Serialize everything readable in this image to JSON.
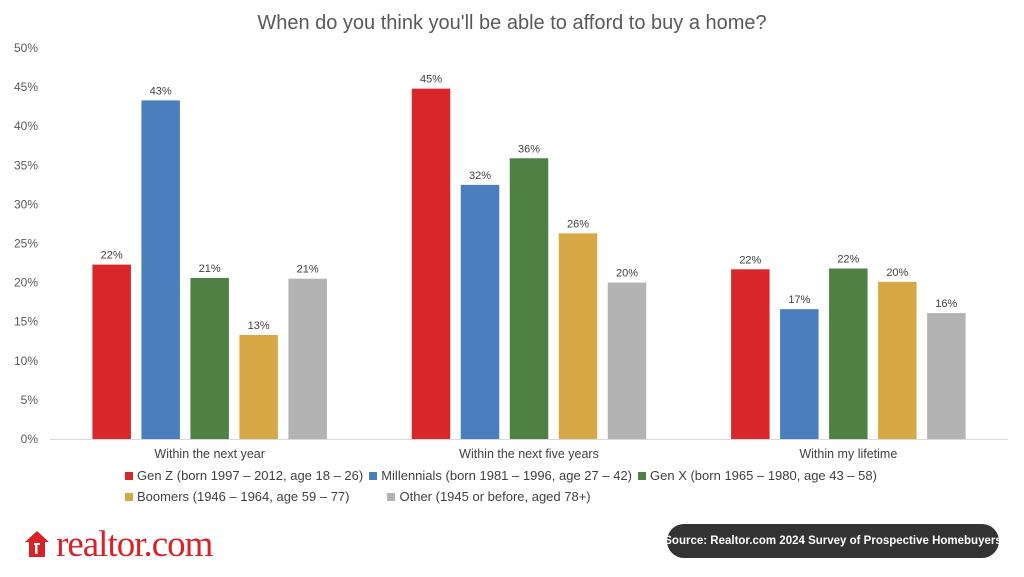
{
  "chart_data": {
    "type": "bar",
    "title": "When do you think you'll be able to afford to buy a home?",
    "categories": [
      "Within the next year",
      "Within the next five years",
      "Within my lifetime"
    ],
    "series": [
      {
        "name": "Gen Z (born 1997 – 2012, age 18 – 26)",
        "color": "#d9262b",
        "values": [
          22.3,
          44.8,
          21.7
        ],
        "labels": [
          "22%",
          "45%",
          "22%"
        ]
      },
      {
        "name": "Millennials (born 1981 – 1996, age 27 – 42)",
        "color": "#4a7ebf",
        "values": [
          43.3,
          32.5,
          16.6
        ],
        "labels": [
          "43%",
          "32%",
          "17%"
        ]
      },
      {
        "name": "Gen X (born 1965 – 1980, age 43 – 58)",
        "color": "#4f8144",
        "values": [
          20.6,
          35.9,
          21.8
        ],
        "labels": [
          "21%",
          "36%",
          "22%"
        ]
      },
      {
        "name": "Boomers (1946 – 1964, age 59 – 77)",
        "color": "#d6a846",
        "values": [
          13.3,
          26.3,
          20.1
        ],
        "labels": [
          "13%",
          "26%",
          "20%"
        ]
      },
      {
        "name": "Other (1945 or before, aged 78+)",
        "color": "#b3b3b3",
        "values": [
          20.5,
          20.0,
          16.1
        ],
        "labels": [
          "21%",
          "20%",
          "16%"
        ]
      }
    ],
    "y_ticks": [
      "0%",
      "5%",
      "10%",
      "15%",
      "20%",
      "25%",
      "30%",
      "35%",
      "40%",
      "45%",
      "50%"
    ],
    "ylim": [
      0,
      50
    ],
    "grid": false,
    "legend_position": "bottom"
  },
  "branding": {
    "logo_text": "realtor.com",
    "logo_color": "#d92228"
  },
  "source": "Source: Realtor.com 2024 Survey of Prospective Homebuyers"
}
